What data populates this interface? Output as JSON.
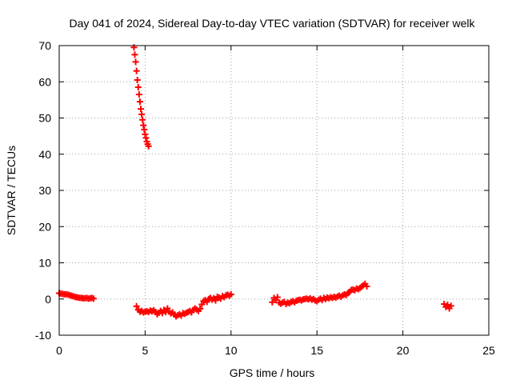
{
  "chart_data": {
    "type": "scatter",
    "title": "Day 041 of 2024, Sidereal Day-to-day VTEC variation (SDTVAR) for receiver welk",
    "xlabel": "GPS time / hours",
    "ylabel": "SDTVAR / TECUs",
    "xlim": [
      0,
      25
    ],
    "ylim": [
      -10,
      70
    ],
    "xticks": [
      0,
      5,
      10,
      15,
      20,
      25
    ],
    "yticks": [
      -10,
      0,
      10,
      20,
      30,
      40,
      50,
      60,
      70
    ],
    "grid": true,
    "marker": "+",
    "series_color": "#ff0000",
    "series": [
      {
        "name": "SDTVAR",
        "points": [
          [
            0.0,
            1.6
          ],
          [
            0.1,
            1.5
          ],
          [
            0.2,
            1.4
          ],
          [
            0.3,
            1.3
          ],
          [
            0.4,
            1.3
          ],
          [
            0.5,
            1.2
          ],
          [
            0.6,
            1.1
          ],
          [
            0.7,
            0.9
          ],
          [
            0.8,
            0.8
          ],
          [
            0.9,
            0.6
          ],
          [
            1.0,
            0.5
          ],
          [
            1.1,
            0.4
          ],
          [
            1.2,
            0.3
          ],
          [
            1.3,
            0.3
          ],
          [
            1.4,
            0.2
          ],
          [
            1.5,
            0.2
          ],
          [
            1.6,
            0.3
          ],
          [
            1.7,
            0.1
          ],
          [
            1.8,
            0.2
          ],
          [
            1.9,
            0.3
          ],
          [
            2.0,
            0.1
          ],
          [
            4.35,
            69.5
          ],
          [
            4.4,
            67.5
          ],
          [
            4.45,
            65.5
          ],
          [
            4.5,
            63.0
          ],
          [
            4.55,
            60.5
          ],
          [
            4.6,
            58.5
          ],
          [
            4.65,
            56.5
          ],
          [
            4.7,
            54.5
          ],
          [
            4.75,
            52.5
          ],
          [
            4.8,
            51.0
          ],
          [
            4.85,
            49.5
          ],
          [
            4.9,
            48.0
          ],
          [
            4.95,
            46.8
          ],
          [
            5.0,
            45.5
          ],
          [
            5.05,
            44.5
          ],
          [
            5.1,
            43.5
          ],
          [
            5.15,
            42.8
          ],
          [
            5.2,
            42.2
          ],
          [
            4.5,
            -2.0
          ],
          [
            4.6,
            -3.0
          ],
          [
            4.7,
            -3.5
          ],
          [
            4.8,
            -3.3
          ],
          [
            4.9,
            -3.7
          ],
          [
            5.0,
            -3.5
          ],
          [
            5.1,
            -3.4
          ],
          [
            5.2,
            -3.6
          ],
          [
            5.3,
            -3.2
          ],
          [
            5.4,
            -3.4
          ],
          [
            5.5,
            -3.1
          ],
          [
            5.6,
            -3.6
          ],
          [
            5.7,
            -4.2
          ],
          [
            5.8,
            -3.8
          ],
          [
            5.9,
            -3.3
          ],
          [
            6.0,
            -3.9
          ],
          [
            6.1,
            -3.0
          ],
          [
            6.2,
            -3.6
          ],
          [
            6.3,
            -2.6
          ],
          [
            6.4,
            -3.5
          ],
          [
            6.5,
            -4.0
          ],
          [
            6.6,
            -3.7
          ],
          [
            6.7,
            -4.3
          ],
          [
            6.8,
            -4.8
          ],
          [
            6.9,
            -4.5
          ],
          [
            7.0,
            -4.2
          ],
          [
            7.1,
            -4.6
          ],
          [
            7.2,
            -3.9
          ],
          [
            7.3,
            -4.1
          ],
          [
            7.4,
            -3.8
          ],
          [
            7.5,
            -3.6
          ],
          [
            7.6,
            -3.3
          ],
          [
            7.7,
            -3.7
          ],
          [
            7.8,
            -3.0
          ],
          [
            7.9,
            -2.6
          ],
          [
            8.0,
            -2.9
          ],
          [
            8.1,
            -3.3
          ],
          [
            8.2,
            -2.7
          ],
          [
            8.3,
            -1.5
          ],
          [
            8.4,
            -0.6
          ],
          [
            8.5,
            -0.3
          ],
          [
            8.6,
            -0.8
          ],
          [
            8.7,
            0.0
          ],
          [
            8.8,
            0.3
          ],
          [
            8.9,
            -0.2
          ],
          [
            9.0,
            0.2
          ],
          [
            9.1,
            -0.4
          ],
          [
            9.2,
            0.6
          ],
          [
            9.3,
            0.4
          ],
          [
            9.4,
            0.1
          ],
          [
            9.5,
            0.8
          ],
          [
            9.6,
            0.5
          ],
          [
            9.7,
            1.0
          ],
          [
            9.8,
            1.2
          ],
          [
            9.9,
            0.9
          ],
          [
            10.0,
            1.3
          ],
          [
            12.4,
            -0.9
          ],
          [
            12.5,
            0.3
          ],
          [
            12.6,
            -0.3
          ],
          [
            12.7,
            0.5
          ],
          [
            12.8,
            -1.0
          ],
          [
            12.9,
            -1.3
          ],
          [
            13.0,
            -1.0
          ],
          [
            13.1,
            -0.8
          ],
          [
            13.2,
            -1.4
          ],
          [
            13.3,
            -1.0
          ],
          [
            13.4,
            -1.2
          ],
          [
            13.5,
            -0.8
          ],
          [
            13.6,
            -0.6
          ],
          [
            13.7,
            -0.9
          ],
          [
            13.8,
            -0.5
          ],
          [
            13.9,
            -0.3
          ],
          [
            14.0,
            -0.2
          ],
          [
            14.1,
            -0.4
          ],
          [
            14.2,
            -0.1
          ],
          [
            14.3,
            0.0
          ],
          [
            14.4,
            0.1
          ],
          [
            14.5,
            -0.1
          ],
          [
            14.6,
            0.2
          ],
          [
            14.7,
            -0.2
          ],
          [
            14.8,
            0.0
          ],
          [
            14.9,
            -0.4
          ],
          [
            15.0,
            -0.6
          ],
          [
            15.1,
            -0.2
          ],
          [
            15.2,
            0.1
          ],
          [
            15.3,
            -0.3
          ],
          [
            15.4,
            0.3
          ],
          [
            15.5,
            0.0
          ],
          [
            15.6,
            0.4
          ],
          [
            15.7,
            0.2
          ],
          [
            15.8,
            0.5
          ],
          [
            15.9,
            0.3
          ],
          [
            16.0,
            0.6
          ],
          [
            16.1,
            0.4
          ],
          [
            16.2,
            0.7
          ],
          [
            16.3,
            0.9
          ],
          [
            16.4,
            0.6
          ],
          [
            16.5,
            1.0
          ],
          [
            16.6,
            1.3
          ],
          [
            16.7,
            1.1
          ],
          [
            16.8,
            1.6
          ],
          [
            16.9,
            2.0
          ],
          [
            17.0,
            2.5
          ],
          [
            17.1,
            2.6
          ],
          [
            17.2,
            2.4
          ],
          [
            17.3,
            2.9
          ],
          [
            17.4,
            2.7
          ],
          [
            17.5,
            3.0
          ],
          [
            17.6,
            3.4
          ],
          [
            17.7,
            3.8
          ],
          [
            17.8,
            4.2
          ],
          [
            17.9,
            3.5
          ],
          [
            22.4,
            -1.4
          ],
          [
            22.5,
            -2.2
          ],
          [
            22.6,
            -1.6
          ],
          [
            22.7,
            -2.6
          ],
          [
            22.8,
            -1.9
          ]
        ]
      }
    ]
  }
}
